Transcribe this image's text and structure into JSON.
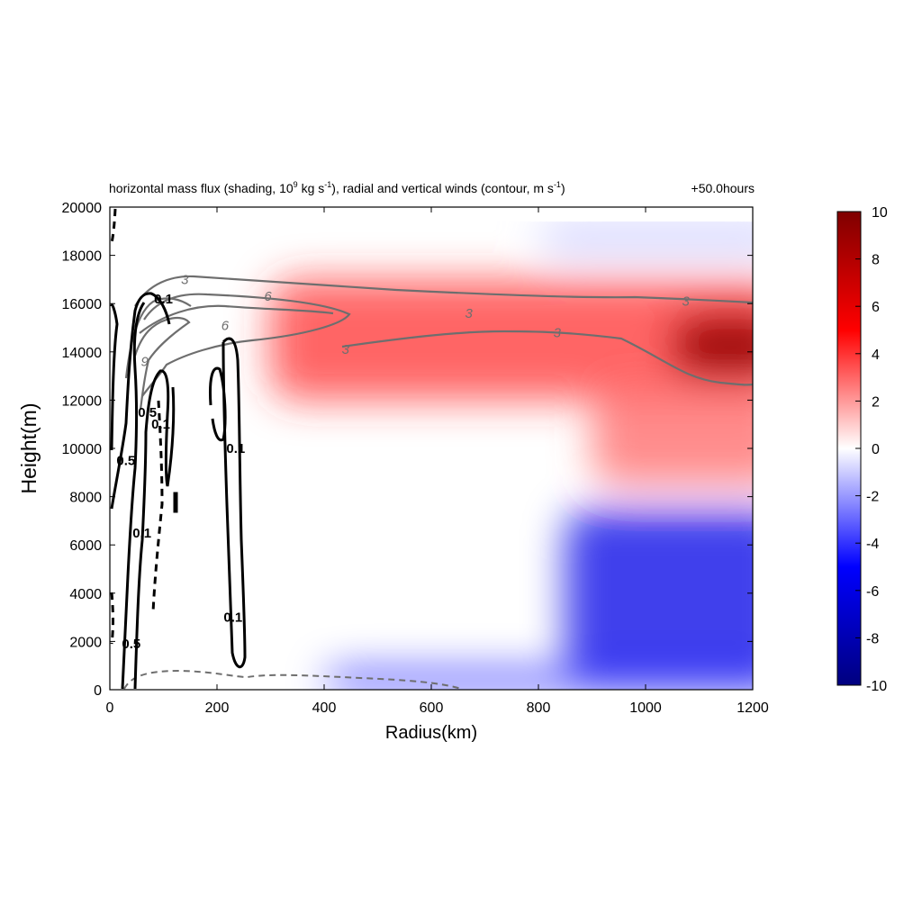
{
  "title": {
    "part1": "horizontal mass flux (shading, 10",
    "sup1": "9",
    "part2": " kg s",
    "sup2": "-1",
    "part3": "), radial and vertical winds (contour, m s",
    "sup3": "-1",
    "part4": ")"
  },
  "time_label": "+50.0hours",
  "chart_data": {
    "type": "heatmap",
    "xlabel": "Radius(km)",
    "ylabel": "Height(m)",
    "xlim": [
      0,
      1200
    ],
    "ylim": [
      0,
      20000
    ],
    "x_ticks": [
      0,
      200,
      400,
      600,
      800,
      1000,
      1200
    ],
    "y_ticks": [
      0,
      2000,
      4000,
      6000,
      8000,
      10000,
      12000,
      14000,
      16000,
      18000,
      20000
    ],
    "colorbar": {
      "range": [
        -10,
        10
      ],
      "ticks": [
        -10,
        -8,
        -6,
        -4,
        -2,
        0,
        2,
        4,
        6,
        8,
        10
      ],
      "colors": {
        "min": "#00007f",
        "low": "#0000ff",
        "mid": "#ffffff",
        "high": "#ff0000",
        "max": "#7f0000"
      }
    },
    "regions": [
      {
        "name": "upper outflow",
        "r": [
          300,
          1200
        ],
        "z": [
          12000,
          17000
        ],
        "value": 4
      },
      {
        "name": "outflow maximum",
        "r": [
          1050,
          1200
        ],
        "z": [
          13000,
          15500
        ],
        "value": 9
      },
      {
        "name": "mid-level outflow",
        "r": [
          900,
          1200
        ],
        "z": [
          8500,
          12500
        ],
        "value": 3
      },
      {
        "name": "lower inflow",
        "r": [
          850,
          1200
        ],
        "z": [
          500,
          7500
        ],
        "value": -6
      },
      {
        "name": "boundary layer inflow",
        "r": [
          400,
          1200
        ],
        "z": [
          0,
          800
        ],
        "value": -5
      },
      {
        "name": "top inflow",
        "r": [
          800,
          1200
        ],
        "z": [
          18000,
          19500
        ],
        "value": -1
      }
    ],
    "contours": [
      {
        "series": "radial wind",
        "level": 3,
        "labels": [
          [
            140,
            17000
          ],
          [
            440,
            14100
          ],
          [
            670,
            15600
          ],
          [
            835,
            14800
          ],
          [
            1075,
            16100
          ]
        ]
      },
      {
        "series": "radial wind",
        "level": 6,
        "labels": [
          [
            295,
            16300
          ],
          [
            215,
            15100
          ]
        ]
      },
      {
        "series": "radial wind",
        "level": 9,
        "labels": [
          [
            65,
            13600
          ]
        ]
      },
      {
        "series": "vertical wind",
        "level": 0.1,
        "labels": [
          [
            100,
            16200
          ],
          [
            95,
            11000
          ],
          [
            235,
            10000
          ],
          [
            230,
            3000
          ],
          [
            60,
            6500
          ]
        ]
      },
      {
        "series": "vertical wind",
        "level": 0.5,
        "labels": [
          [
            30,
            9500
          ],
          [
            70,
            11500
          ],
          [
            40,
            1900
          ]
        ]
      }
    ],
    "contour_labels": [
      "3",
      "6",
      "9",
      "0.1",
      "0.5"
    ]
  },
  "colors": {
    "radial_contour": "#6e6e6e",
    "vertical_contour": "#000000"
  }
}
